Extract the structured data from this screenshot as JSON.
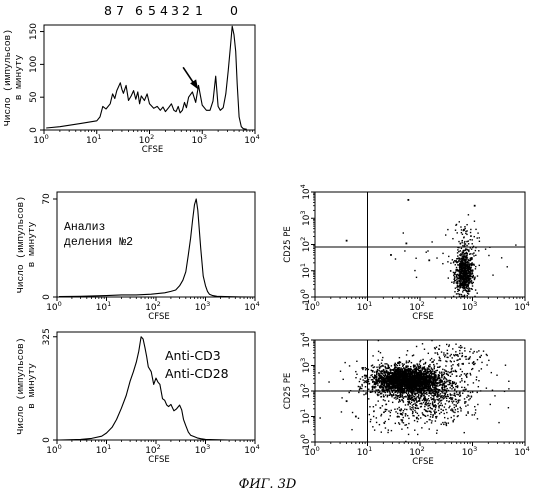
{
  "figure_label": "ФИГ. 3D",
  "chart_data": [
    {
      "id": "hist_top",
      "type": "line",
      "xlabel": "CFSE",
      "ylabel": [
        "Число (импульсов)",
        "в минуту"
      ],
      "xscale": "log",
      "xlim": [
        1,
        10000
      ],
      "ylim": [
        0,
        160
      ],
      "yticks": [
        "0",
        "50",
        "100",
        "150"
      ],
      "ytick_values": [
        0,
        50,
        100,
        150
      ],
      "generation_labels": [
        "8",
        "7",
        "6",
        "5",
        "4",
        "3",
        "2",
        "1",
        "0"
      ],
      "annotation": {
        "type": "arrow",
        "pointing_to": "generation 2 peak",
        "x": 800
      },
      "x": [
        1.1,
        2,
        5,
        10,
        11.5,
        13,
        15,
        18,
        20,
        22,
        24,
        28,
        30,
        32,
        36,
        40,
        45,
        50,
        55,
        60,
        65,
        70,
        80,
        90,
        100,
        120,
        140,
        160,
        180,
        200,
        230,
        260,
        290,
        320,
        350,
        380,
        420,
        460,
        500,
        550,
        650,
        750,
        850,
        1000,
        1200,
        1400,
        1600,
        1800,
        2000,
        2200,
        2500,
        2800,
        3100,
        3400,
        3700,
        4000,
        4300,
        4600,
        5000,
        5500,
        6000,
        7000
      ],
      "y": [
        3,
        5,
        10,
        14,
        20,
        36,
        32,
        40,
        55,
        48,
        60,
        72,
        62,
        56,
        68,
        45,
        52,
        60,
        47,
        58,
        40,
        52,
        45,
        55,
        40,
        33,
        36,
        30,
        35,
        28,
        34,
        40,
        30,
        28,
        36,
        26,
        30,
        42,
        34,
        50,
        58,
        42,
        68,
        38,
        30,
        30,
        44,
        82,
        36,
        30,
        34,
        55,
        90,
        125,
        158,
        145,
        120,
        70,
        20,
        5,
        2,
        1
      ]
    },
    {
      "id": "hist_mid",
      "type": "line",
      "xlabel": "CFSE",
      "ylabel": [
        "Число (импульсов)",
        "в минуту"
      ],
      "xscale": "log",
      "xlim": [
        1,
        10000
      ],
      "ylim": [
        0,
        75
      ],
      "yticks": [
        "0",
        "70"
      ],
      "ytick_values": [
        0,
        70
      ],
      "annotation_text": [
        "Анализ",
        "деления №2"
      ],
      "x": [
        1.1,
        3,
        10,
        20,
        40,
        80,
        150,
        200,
        250,
        300,
        350,
        400,
        450,
        500,
        550,
        600,
        650,
        700,
        750,
        800,
        900,
        1000,
        1100,
        1200,
        1400,
        1700,
        2500,
        5000,
        9000
      ],
      "y": [
        0.3,
        0.5,
        1,
        1.5,
        1.5,
        2,
        3,
        4,
        5,
        8,
        12,
        18,
        30,
        42,
        55,
        66,
        70,
        62,
        48,
        35,
        15,
        8,
        4,
        2,
        1,
        0.5,
        0.3,
        0.1,
        0
      ]
    },
    {
      "id": "hist_bot",
      "type": "line",
      "xlabel": "CFSE",
      "ylabel": [
        "Число (импульсов)",
        "в минуту"
      ],
      "xscale": "log",
      "xlim": [
        1,
        10000
      ],
      "ylim": [
        0,
        340
      ],
      "yticks": [
        "0",
        "325"
      ],
      "ytick_values": [
        0,
        325
      ],
      "annotation_text": [
        "Anti-CD3",
        "Anti-CD28"
      ],
      "x": [
        1.1,
        3,
        5,
        8,
        10,
        13,
        16,
        20,
        25,
        30,
        35,
        40,
        45,
        50,
        55,
        60,
        65,
        70,
        80,
        90,
        100,
        110,
        120,
        135,
        150,
        165,
        180,
        200,
        230,
        260,
        300,
        330,
        360,
        400,
        450,
        500,
        600,
        700,
        800,
        1000,
        1500,
        3000,
        9000
      ],
      "y": [
        0,
        2,
        5,
        12,
        22,
        40,
        65,
        100,
        140,
        185,
        215,
        245,
        280,
        325,
        318,
        290,
        262,
        230,
        215,
        175,
        195,
        182,
        175,
        130,
        125,
        110,
        105,
        112,
        92,
        98,
        110,
        95,
        65,
        45,
        25,
        15,
        10,
        6,
        4,
        2,
        1,
        0,
        0
      ]
    },
    {
      "id": "dot_mid",
      "type": "scatter",
      "xlabel": "CFSE",
      "ylabel": "CD25 PE",
      "xscale": "log",
      "yscale": "log",
      "xlim": [
        1,
        10000
      ],
      "ylim": [
        1,
        10000
      ],
      "quadrant_x": 10,
      "quadrant_y": 80,
      "clusters": [
        {
          "cx": 700,
          "cy": 8,
          "sx_log": 0.09,
          "sy_log": 0.38,
          "n": 700
        },
        {
          "cx": 700,
          "cy": 120,
          "sx_log": 0.12,
          "sy_log": 0.45,
          "n": 90
        },
        {
          "cx": 400,
          "cy": 30,
          "sx_log": 0.55,
          "sy_log": 0.5,
          "n": 30
        }
      ],
      "isolated_points": [
        [
          4,
          140
        ],
        [
          55,
          110
        ],
        [
          60,
          5000
        ],
        [
          28,
          40
        ],
        [
          150,
          25
        ],
        [
          1100,
          3000
        ]
      ]
    },
    {
      "id": "dot_bot",
      "type": "scatter",
      "xlabel": "CFSE",
      "ylabel": "CD25 PE",
      "xscale": "log",
      "yscale": "log",
      "xlim": [
        1,
        10000
      ],
      "ylim": [
        1,
        10000
      ],
      "quadrant_x": 10,
      "quadrant_y": 100,
      "clusters": [
        {
          "cx": 55,
          "cy": 260,
          "sx_log": 0.32,
          "sy_log": 0.27,
          "n": 2600
        },
        {
          "cx": 180,
          "cy": 60,
          "sx_log": 0.35,
          "sy_log": 0.45,
          "n": 500
        },
        {
          "cx": 400,
          "cy": 2000,
          "sx_log": 0.3,
          "sy_log": 0.35,
          "n": 120
        },
        {
          "cx": 40,
          "cy": 10,
          "sx_log": 0.45,
          "sy_log": 0.3,
          "n": 100
        },
        {
          "cx": 100,
          "cy": 150,
          "sx_log": 0.8,
          "sy_log": 0.7,
          "n": 200
        }
      ],
      "isolated_points": [
        [
          8,
          800
        ],
        [
          4,
          40
        ],
        [
          6,
          10
        ]
      ]
    }
  ]
}
